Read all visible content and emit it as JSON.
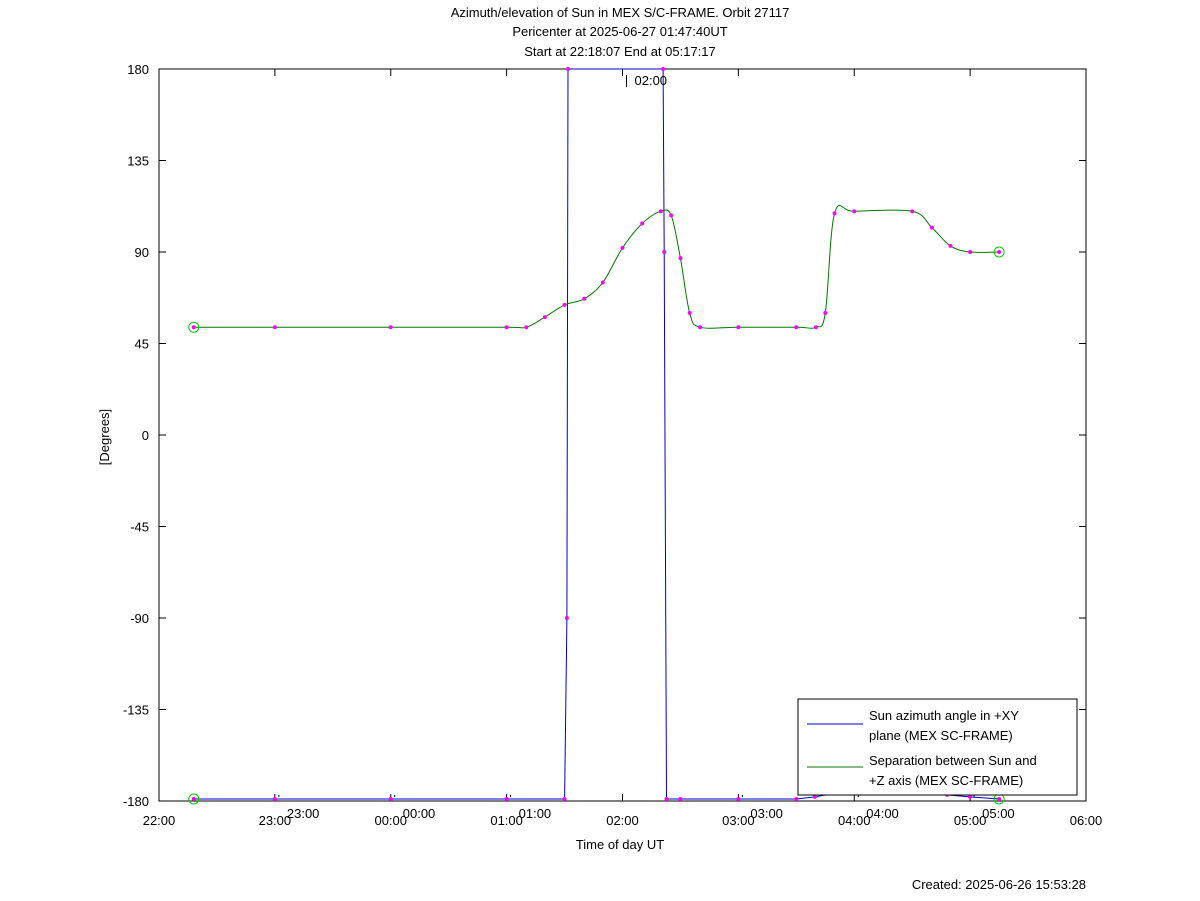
{
  "title_lines": [
    "Azimuth/elevation of Sun in MEX S/C-FRAME.  Orbit 27117",
    "Pericenter at 2025-06-27 01:47:40UT",
    "Start at 22:18:07 End at 05:17:17"
  ],
  "created_text": "Created: 2025-06-26 15:53:28",
  "chart_data": {
    "type": "line",
    "xlabel": "Time of day UT",
    "ylabel": "[Degrees]",
    "x_unit": "hours since 22:00 UT",
    "xlim": [
      0,
      8
    ],
    "ylim": [
      -180,
      180
    ],
    "x_ticks": [
      {
        "label": "22:00",
        "pos": 0
      },
      {
        "label": "23:00",
        "pos": 1
      },
      {
        "label": "00:00",
        "pos": 2
      },
      {
        "label": "01:00",
        "pos": 3
      },
      {
        "label": "02:00",
        "pos": 4
      },
      {
        "label": "03:00",
        "pos": 5
      },
      {
        "label": "04:00",
        "pos": 6
      },
      {
        "label": "05:00",
        "pos": 7
      },
      {
        "label": "06:00",
        "pos": 8
      }
    ],
    "y_ticks": [
      180,
      135,
      90,
      45,
      0,
      -45,
      -90,
      -135,
      -180
    ],
    "grid": false,
    "legend_position": "bottom-right",
    "series": [
      {
        "name": "Sun azimuth angle in +XY plane (MEX SC-FRAME)",
        "legend_lines": [
          "Sun azimuth angle in +XY",
          "plane (MEX SC-FRAME)"
        ],
        "color": "#0000cc",
        "x": [
          0.3,
          1.0,
          2.0,
          3.0,
          3.5,
          3.52,
          3.53,
          4.35,
          4.36,
          4.38,
          4.5,
          5.0,
          5.5,
          5.66,
          5.85,
          6.0,
          6.5,
          6.8,
          7.0,
          7.25
        ],
        "values": [
          -179,
          -179,
          -179,
          -179,
          -179,
          -90,
          180,
          180,
          90,
          -179,
          -179,
          -179,
          -179,
          -178,
          -176,
          -176,
          -176,
          -177,
          -178,
          -179
        ]
      },
      {
        "name": "Separation between Sun and +Z axis (MEX SC-FRAME)",
        "legend_lines": [
          "Separation between Sun and",
          "+Z axis (MEX SC-FRAME)"
        ],
        "color": "#007700",
        "x": [
          0.3,
          1.0,
          2.0,
          3.0,
          3.17,
          3.33,
          3.5,
          3.67,
          3.83,
          4.0,
          4.17,
          4.33,
          4.42,
          4.5,
          4.58,
          4.67,
          5.0,
          5.5,
          5.67,
          5.75,
          5.83,
          6.0,
          6.5,
          6.67,
          6.83,
          7.0,
          7.25
        ],
        "values": [
          53,
          53,
          53,
          53,
          53,
          58,
          64,
          67,
          75,
          92,
          104,
          110,
          108,
          87,
          60,
          53,
          53,
          53,
          53,
          60,
          109,
          110,
          110,
          102,
          93,
          90,
          90
        ]
      }
    ],
    "marker_color": "#ff00ff",
    "circle_marker_color": "#00cc00",
    "time_annotations": [
      {
        "label": "02:00",
        "x": 4.0,
        "y": 180
      },
      {
        "label": "23:00",
        "x": 1.0,
        "y": -180
      },
      {
        "label": "00:00",
        "x": 2.0,
        "y": -180
      },
      {
        "label": "01:00",
        "x": 3.0,
        "y": -180
      },
      {
        "label": "03:00",
        "x": 5.0,
        "y": -180
      },
      {
        "label": "04:00",
        "x": 6.0,
        "y": -180
      },
      {
        "label": "05:00",
        "x": 7.0,
        "y": -180
      }
    ]
  }
}
